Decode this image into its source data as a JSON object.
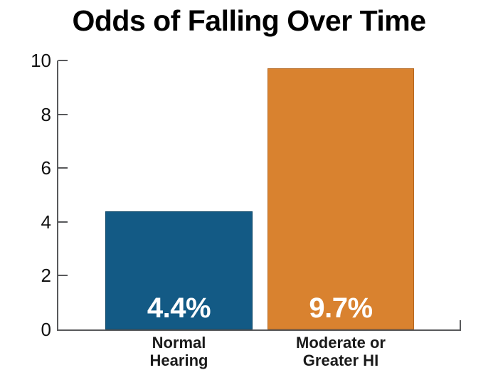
{
  "chart_data": {
    "type": "bar",
    "title": "Odds of Falling Over Time",
    "categories": [
      "Normal\nHearing",
      "Moderate or\nGreater HI"
    ],
    "values": [
      4.4,
      9.7
    ],
    "bar_labels": [
      "4.4%",
      "9.7%"
    ],
    "colors": [
      "#135A85",
      "#D9822F"
    ],
    "border_colors": [
      "#0C4668",
      "#B5661F"
    ],
    "xlabel": "",
    "ylabel": "",
    "ylim": [
      0,
      10
    ],
    "y_ticks": [
      0,
      2,
      4,
      6,
      8,
      10
    ],
    "grid": false,
    "legend": "none",
    "axis_color": "#58595b",
    "background_color": "#ffffff",
    "title_color": "#000000",
    "value_label_color": "#ffffff",
    "category_label_color": "#1a1a1a"
  }
}
